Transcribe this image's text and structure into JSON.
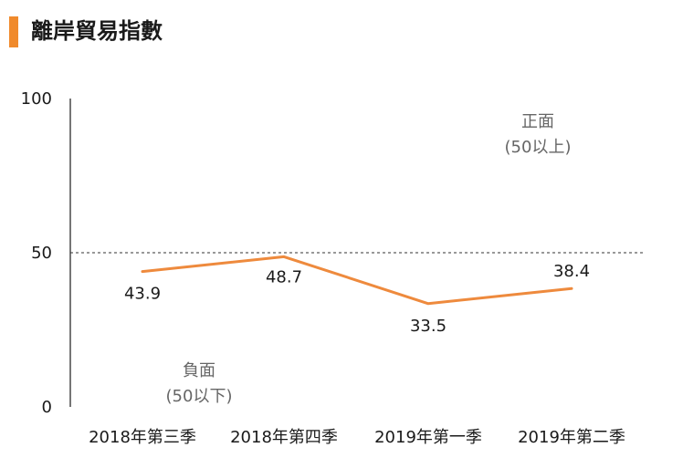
{
  "title": "離岸貿易指數",
  "colors": {
    "accent": "#f08a2c",
    "line": "#ee8a3d",
    "axis": "#1a1a1a",
    "annotation": "#666666",
    "reference": "#333333"
  },
  "chart_data": {
    "type": "line",
    "title": "離岸貿易指數",
    "xlabel": "",
    "ylabel": "",
    "categories": [
      "2018年第三季",
      "2018年第四季",
      "2019年第一季",
      "2019年第二季"
    ],
    "series": [
      {
        "name": "離岸貿易指數",
        "values": [
          43.9,
          48.7,
          33.5,
          38.4
        ]
      }
    ],
    "ylim": [
      0,
      100
    ],
    "yticks": [
      0,
      50,
      100
    ],
    "reference_line": {
      "value": 50,
      "style": "dashed"
    },
    "data_labels": [
      "43.9",
      "48.7",
      "33.5",
      "38.4"
    ],
    "annotations": {
      "positive": {
        "line1": "正面",
        "line2": "(50以上)"
      },
      "negative": {
        "line1": "負面",
        "line2": "(50以下)"
      }
    },
    "grid": false,
    "legend": "none"
  }
}
